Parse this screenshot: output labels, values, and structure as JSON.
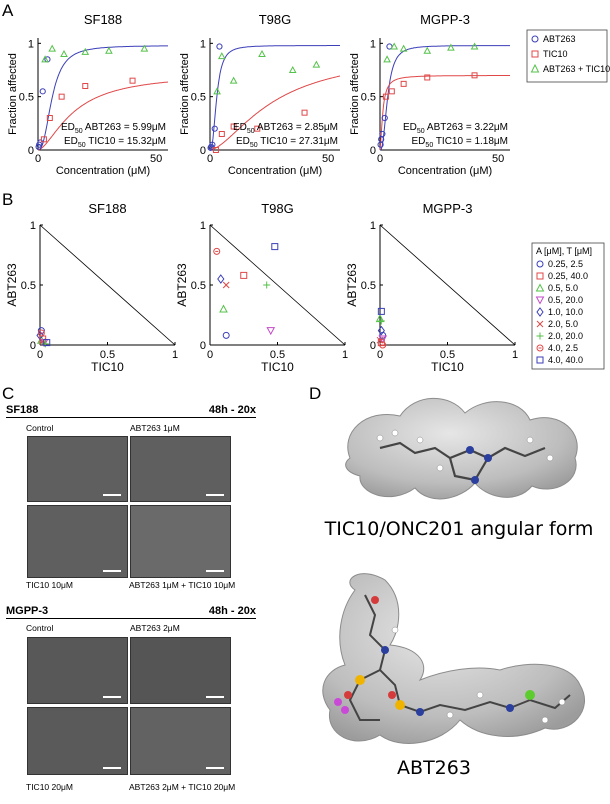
{
  "panel_labels": {
    "a": "A",
    "b": "B",
    "c": "C",
    "d": "D"
  },
  "panelA": {
    "titles": [
      "SF188",
      "T98G",
      "MGPP-3"
    ],
    "ylabel": "Fraction affected",
    "xlabel": "Concentration (μM)",
    "yticks": [
      "0",
      "0.5",
      "1"
    ],
    "xticks": [
      "0",
      "50"
    ],
    "ed_sub": "50",
    "ed_lines": [
      [
        "ABT263 = 5.99μM",
        "TIC10 = 15.32μM"
      ],
      [
        "ABT263 = 2.85μM",
        "TIC10 = 27.31μM"
      ],
      [
        "ABT263 = 3.22μM",
        "TIC10 = 1.18μM"
      ]
    ],
    "legend": [
      "ABT263",
      "TIC10",
      "ABT263 + TIC10"
    ]
  },
  "panelB": {
    "titles": [
      "SF188",
      "T98G",
      "MGPP-3"
    ],
    "ylabel": "ABT263",
    "xlabel": "TIC10",
    "yticks": [
      "0",
      "0.5",
      "1"
    ],
    "xticks": [
      "0",
      "0.5",
      "1"
    ],
    "legend_title": "A [μM], T [μM]",
    "legend": [
      "0.25, 2.5",
      "0.25, 40.0",
      "0.5, 5.0",
      "0.5, 20.0",
      "1.0, 10.0",
      "2.0, 5.0",
      "2.0, 20.0",
      "4.0, 2.5",
      "4.0, 40.0"
    ]
  },
  "panelC": {
    "sf188": {
      "title": "SF188",
      "condition": "48h - 20x",
      "captions": [
        "Control",
        "ABT263 1μM",
        "TIC10 10μM",
        "ABT263 1μM + TIC10 10μM"
      ]
    },
    "mgpp3": {
      "title": "MGPP-3",
      "condition": "48h - 20x",
      "captions": [
        "Control",
        "ABT263 2μM",
        "TIC10 20μM",
        "ABT263 2μM + TIC10 20μM"
      ]
    }
  },
  "panelD": {
    "labels": [
      "TIC10/ONC201 angular form",
      "ABT263"
    ]
  },
  "chart_data": [
    {
      "type": "scatter",
      "title": "SF188",
      "xlabel": "Concentration (μM)",
      "ylabel": "Fraction affected",
      "xlim": [
        0,
        55
      ],
      "ylim": [
        0,
        1.05
      ],
      "series": [
        {
          "name": "ABT263",
          "x": [
            0.25,
            0.5,
            1,
            2,
            4
          ],
          "y": [
            0.03,
            0.05,
            0.07,
            0.55,
            0.85
          ],
          "fit_ed50": 5.99
        },
        {
          "name": "TIC10",
          "x": [
            2.5,
            5,
            10,
            20,
            40
          ],
          "y": [
            0.1,
            0.3,
            0.5,
            0.6,
            0.65
          ],
          "fit_ed50": 15.32
        },
        {
          "name": "ABT263 + TIC10",
          "x": [
            3,
            6,
            11,
            20,
            30,
            45
          ],
          "y": [
            0.85,
            0.95,
            0.9,
            0.92,
            0.93,
            0.95
          ]
        }
      ]
    },
    {
      "type": "scatter",
      "title": "T98G",
      "xlabel": "Concentration (μM)",
      "ylabel": "Fraction affected",
      "xlim": [
        0,
        55
      ],
      "ylim": [
        0,
        1.05
      ],
      "series": [
        {
          "name": "ABT263",
          "x": [
            0.25,
            0.5,
            1,
            2,
            4
          ],
          "y": [
            0.02,
            0.03,
            0.05,
            0.2,
            0.97
          ],
          "fit_ed50": 2.85
        },
        {
          "name": "TIC10",
          "x": [
            2.5,
            5,
            10,
            20,
            40
          ],
          "y": [
            0.0,
            0.15,
            0.22,
            0.2,
            0.35
          ],
          "fit_ed50": 27.31
        },
        {
          "name": "ABT263 + TIC10",
          "x": [
            3,
            5,
            10,
            22,
            35,
            45
          ],
          "y": [
            0.55,
            0.88,
            0.65,
            0.9,
            0.75,
            0.8
          ]
        }
      ]
    },
    {
      "type": "scatter",
      "title": "MGPP-3",
      "xlabel": "Concentration (μM)",
      "ylabel": "Fraction affected",
      "xlim": [
        0,
        55
      ],
      "ylim": [
        0,
        1.05
      ],
      "series": [
        {
          "name": "ABT263",
          "x": [
            0.25,
            0.5,
            1,
            2,
            4
          ],
          "y": [
            0.05,
            0.1,
            0.15,
            0.3,
            0.97
          ],
          "fit_ed50": 3.22
        },
        {
          "name": "TIC10",
          "x": [
            2.5,
            5,
            10,
            20,
            40
          ],
          "y": [
            0.5,
            0.55,
            0.62,
            0.68,
            0.7
          ],
          "fit_ed50": 1.18
        },
        {
          "name": "ABT263 + TIC10",
          "x": [
            3,
            6,
            10,
            20,
            30,
            40
          ],
          "y": [
            0.85,
            0.97,
            0.95,
            0.93,
            0.96,
            0.97
          ]
        }
      ]
    },
    {
      "type": "scatter",
      "title": "SF188",
      "xlabel": "TIC10",
      "ylabel": "ABT263",
      "xlim": [
        0,
        1
      ],
      "ylim": [
        0,
        1
      ],
      "points": [
        [
          0.01,
          0.12
        ],
        [
          0.02,
          0.05
        ],
        [
          0.01,
          0.04
        ],
        [
          0.03,
          0.02
        ],
        [
          0.0,
          0.08
        ],
        [
          0.02,
          0.03
        ],
        [
          0.04,
          0.01
        ],
        [
          0.01,
          0.1
        ],
        [
          0.05,
          0.02
        ]
      ]
    },
    {
      "type": "scatter",
      "title": "T98G",
      "xlabel": "TIC10",
      "ylabel": "ABT263",
      "xlim": [
        0,
        1
      ],
      "ylim": [
        0,
        1
      ],
      "points": [
        [
          0.12,
          0.08
        ],
        [
          0.25,
          0.58
        ],
        [
          0.1,
          0.3
        ],
        [
          0.45,
          0.12
        ],
        [
          0.08,
          0.55
        ],
        [
          0.12,
          0.5
        ],
        [
          0.42,
          0.5
        ],
        [
          0.05,
          0.78
        ],
        [
          0.48,
          0.82
        ]
      ]
    },
    {
      "type": "scatter",
      "title": "MGPP-3",
      "xlabel": "TIC10",
      "ylabel": "ABT263",
      "xlim": [
        0,
        1
      ],
      "ylim": [
        0,
        1
      ],
      "points": [
        [
          0.02,
          0.08
        ],
        [
          0.01,
          0.02
        ],
        [
          0.0,
          0.22
        ],
        [
          0.02,
          0.05
        ],
        [
          0.01,
          0.12
        ],
        [
          0.0,
          0.04
        ],
        [
          0.01,
          0.2
        ],
        [
          0.02,
          0.0
        ],
        [
          0.01,
          0.28
        ]
      ]
    }
  ]
}
